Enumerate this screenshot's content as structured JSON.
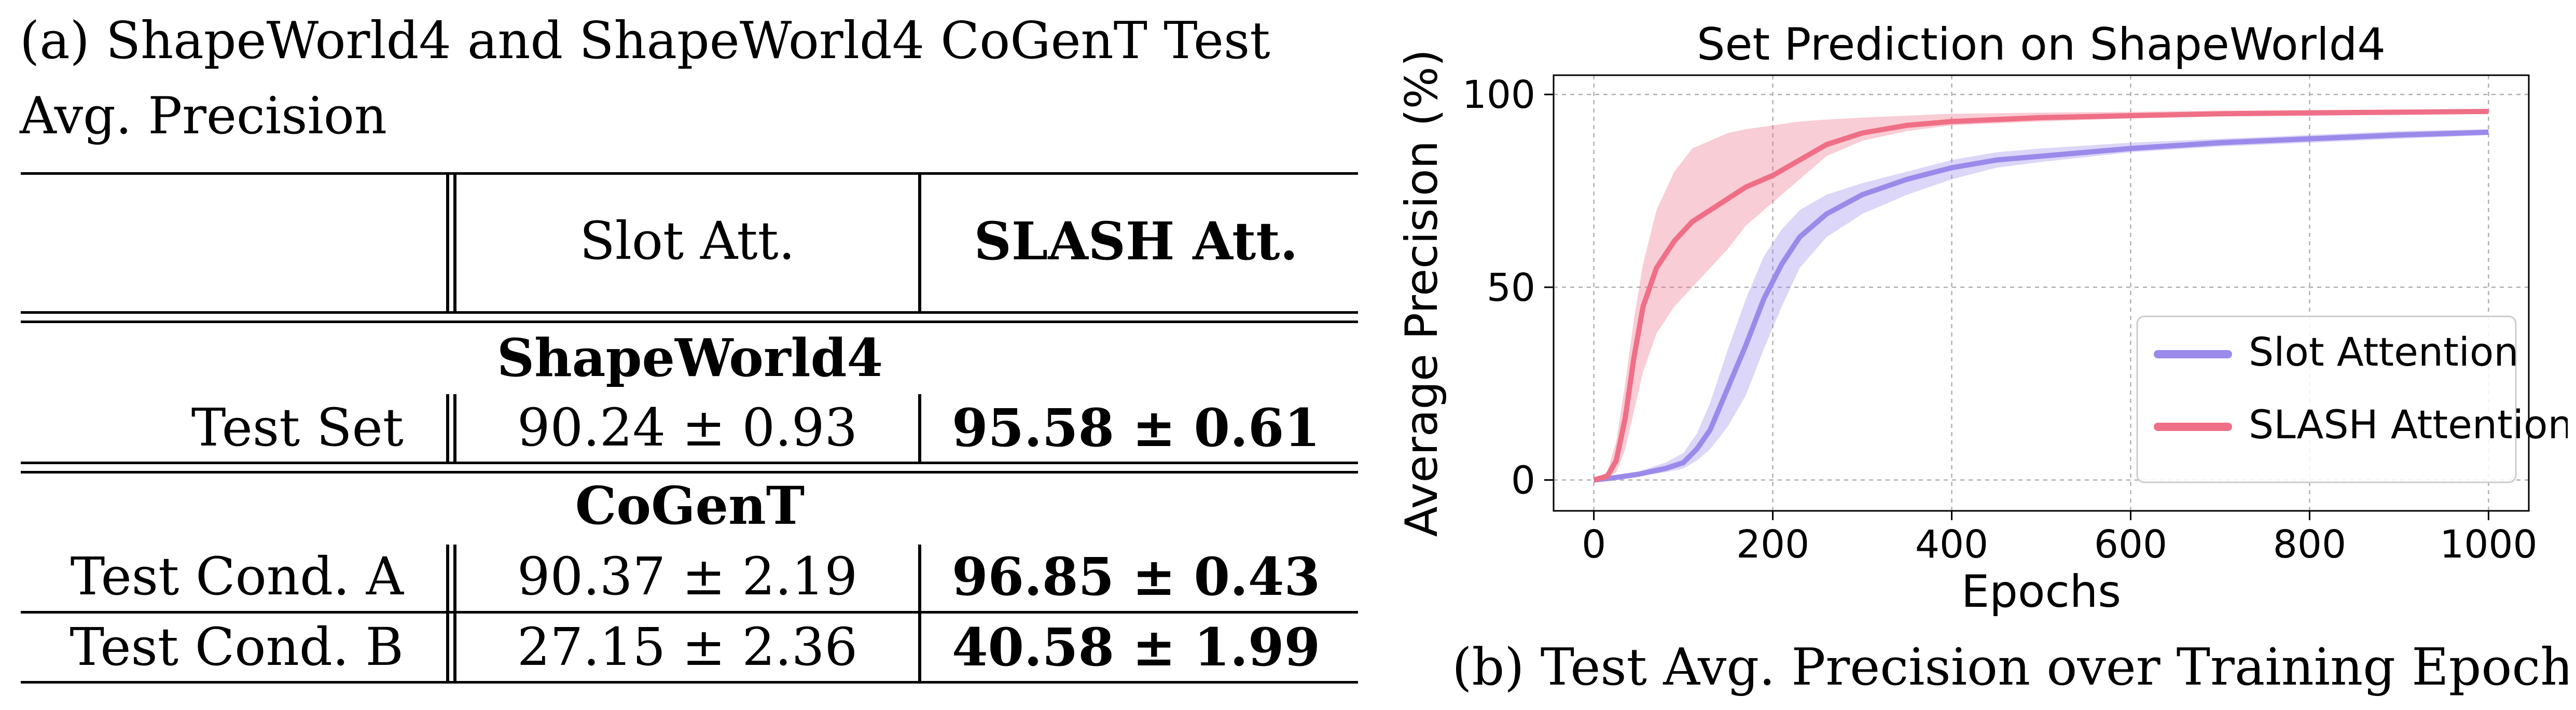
{
  "table": {
    "caption_line1": "(a) ShapeWorld4 and ShapeWorld4 CoGenT Test",
    "caption_line2": "Avg. Precision",
    "header": {
      "col1": "",
      "col2": "Slot Att.",
      "col3": "SLASH Att."
    },
    "groups": [
      {
        "title": "ShapeWorld4",
        "rows": [
          {
            "label": "Test Set",
            "slot": "90.24 ± 0.93",
            "slash": "95.58 ± 0.61"
          }
        ]
      },
      {
        "title": "CoGenT",
        "rows": [
          {
            "label": "Test Cond. A",
            "slot": "90.37 ± 2.19",
            "slash": "96.85 ± 0.43"
          },
          {
            "label": "Test Cond. B",
            "slot": "27.15 ± 2.36",
            "slash": "40.58 ± 1.99"
          }
        ]
      }
    ]
  },
  "chart_data": {
    "type": "line",
    "title": "Set Prediction on ShapeWorld4",
    "xlabel": "Epochs",
    "ylabel": "Average Precision (%)",
    "xlim": [
      -45,
      1045
    ],
    "ylim": [
      -8,
      105
    ],
    "xticks": [
      0,
      200,
      400,
      600,
      800,
      1000
    ],
    "yticks": [
      0,
      50,
      100
    ],
    "grid": true,
    "legend_position": "bottom-right",
    "caption": "(b) Test Avg. Precision over Training Epochs",
    "series": [
      {
        "name": "Slot Attention",
        "color": "#9b8aea",
        "x": [
          0,
          20,
          50,
          80,
          100,
          115,
          130,
          150,
          170,
          190,
          210,
          230,
          260,
          300,
          350,
          400,
          450,
          500,
          600,
          700,
          800,
          900,
          1000
        ],
        "y": [
          0,
          0.5,
          1.5,
          3,
          4.5,
          8,
          13,
          24,
          35,
          47,
          56,
          63,
          69,
          74,
          78,
          81,
          83,
          84,
          86,
          87.5,
          88.5,
          89.5,
          90.2
        ],
        "lower": [
          0,
          0.3,
          1,
          2,
          3,
          5,
          8,
          14,
          22,
          34,
          45,
          55,
          63,
          69,
          74,
          78,
          81,
          82.5,
          85,
          86.5,
          87.5,
          88.5,
          89.5
        ],
        "upper": [
          0,
          0.8,
          2.2,
          4.5,
          7,
          12,
          20,
          34,
          47,
          58,
          65,
          70,
          74,
          77,
          80,
          83,
          85,
          86,
          87.5,
          88.5,
          89.5,
          90.5,
          91
        ]
      },
      {
        "name": "SLASH Attention",
        "color": "#ef6f86",
        "x": [
          0,
          15,
          25,
          35,
          45,
          55,
          70,
          90,
          110,
          130,
          150,
          170,
          200,
          230,
          260,
          300,
          350,
          400,
          500,
          600,
          700,
          800,
          900,
          1000
        ],
        "y": [
          0,
          1,
          5,
          16,
          32,
          45,
          55,
          62,
          67,
          70,
          73,
          76,
          79,
          83,
          87,
          90,
          92,
          93,
          94,
          94.5,
          95,
          95.2,
          95.4,
          95.6
        ],
        "lower": [
          0,
          0.5,
          2,
          8,
          18,
          28,
          38,
          45,
          50,
          55,
          60,
          66,
          72,
          78,
          84,
          88,
          90.5,
          92,
          93,
          93.8,
          94.3,
          94.6,
          94.9,
          95.1
        ],
        "upper": [
          0,
          2,
          10,
          25,
          42,
          56,
          70,
          80,
          86,
          88,
          90,
          91,
          92,
          93,
          93.5,
          94,
          94.5,
          95,
          95.3,
          95.5,
          95.8,
          96,
          96.1,
          96.2
        ]
      }
    ]
  }
}
